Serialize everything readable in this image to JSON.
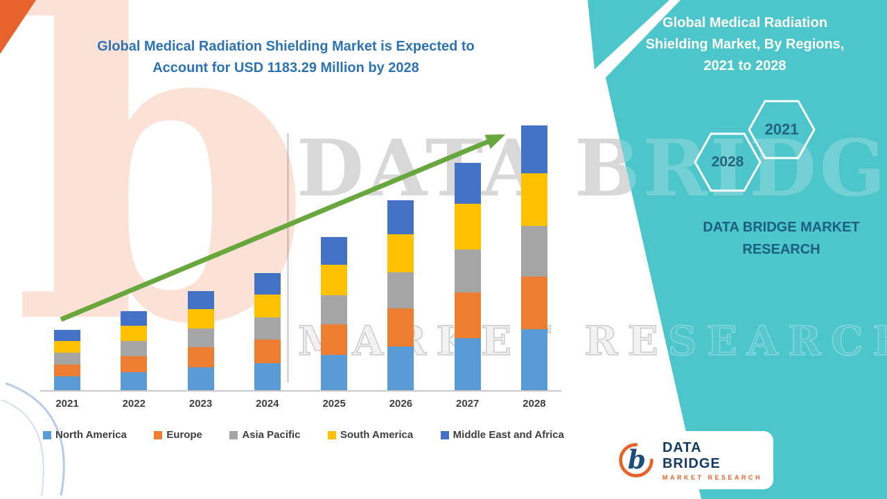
{
  "header": {
    "title_line1": "Global Medical Radiation Shielding Market is Expected to",
    "title_line2": "Account for USD 1183.29 Million by 2028"
  },
  "side_panel": {
    "title_lines": [
      "Global Medical Radiation",
      "Shielding Market, By Regions,",
      "2021 to 2028"
    ],
    "hexagon_left_year": "2028",
    "hexagon_right_year": "2021",
    "brand_line1": "DATA BRIDGE MARKET",
    "brand_line2": "RESEARCH",
    "background_color": "#4CC5CB",
    "year_text_color": "#25647F",
    "brand_text_color": "#1A6080"
  },
  "watermark": {
    "line1": "DATA BRIDGE",
    "line2": "MARKET RESEARCH",
    "logo_letter": "b"
  },
  "footer_logo": {
    "name": "DATA BRIDGE",
    "subtitle": "MARKET RESEARCH",
    "icon": "data-bridge-b-icon",
    "name_color": "#123B63",
    "subtitle_color": "#E8632C"
  },
  "chart_data": {
    "type": "bar",
    "stacked": true,
    "title": "Global Medical Radiation Shielding Market is Expected to Account for USD 1183.29 Million by 2028",
    "unit": "USD Million",
    "categories": [
      "2021",
      "2022",
      "2023",
      "2024",
      "2025",
      "2026",
      "2027",
      "2028"
    ],
    "series": [
      {
        "name": "North America",
        "color": "#5B9BD5",
        "values": [
          62,
          81,
          102,
          120,
          157,
          195,
          234,
          272
        ]
      },
      {
        "name": "Europe",
        "color": "#ED7D31",
        "values": [
          54,
          71,
          89,
          105,
          137,
          170,
          203,
          237
        ]
      },
      {
        "name": "Asia Pacific",
        "color": "#A5A5A5",
        "values": [
          51,
          67,
          84,
          99,
          130,
          161,
          193,
          225
        ]
      },
      {
        "name": "South America",
        "color": "#FFC000",
        "values": [
          54,
          71,
          89,
          105,
          137,
          170,
          203,
          237
        ]
      },
      {
        "name": "Middle East and Africa",
        "color": "#4472C4",
        "values": [
          48,
          63,
          79,
          94,
          123,
          153,
          183,
          212.29
        ]
      }
    ],
    "totals": [
      269,
      353,
      443,
      523,
      684,
      849,
      1016,
      1183.29
    ],
    "ylim": [
      0,
      1200
    ],
    "grid": false,
    "y_axis_labels_visible": false,
    "legend_position": "bottom",
    "trend_arrow": true,
    "arrow_color": "#68A73E",
    "axis_line_color": "#C8C8C8",
    "label_color": "#3F3F3F"
  }
}
